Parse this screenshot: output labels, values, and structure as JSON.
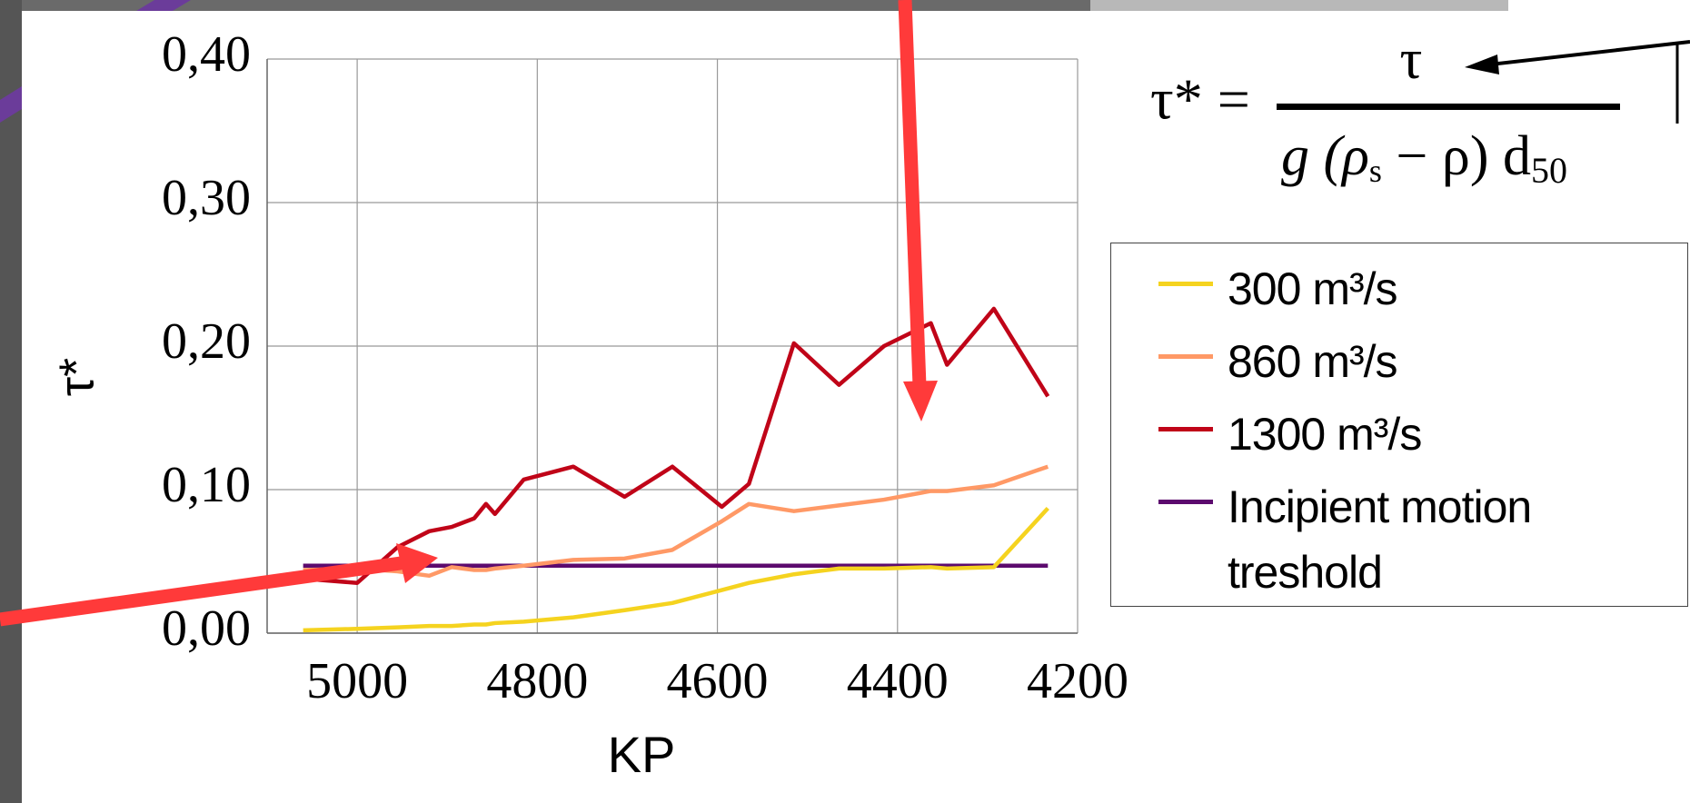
{
  "chart_data": {
    "type": "line",
    "x_label": "KP",
    "y_label": "τ*",
    "x": [
      5060,
      5000,
      4955,
      4920,
      4895,
      4870,
      4857,
      4847,
      4815,
      4760,
      4703,
      4650,
      4595,
      4565,
      4515,
      4465,
      4415,
      4363,
      4345,
      4293,
      4233
    ],
    "series": [
      {
        "name": "300 m³/s",
        "color": "#f5d31f",
        "values": [
          0.002,
          0.003,
          0.004,
          0.005,
          0.005,
          0.006,
          0.006,
          0.007,
          0.008,
          0.011,
          0.016,
          0.021,
          0.03,
          0.035,
          0.041,
          0.045,
          0.045,
          0.046,
          0.045,
          0.046,
          0.087
        ]
      },
      {
        "name": "860 m³/s",
        "color": "#ff9966",
        "values": [
          0.044,
          0.045,
          0.043,
          0.04,
          0.046,
          0.044,
          0.044,
          0.045,
          0.047,
          0.051,
          0.052,
          0.058,
          0.078,
          0.09,
          0.085,
          0.089,
          0.093,
          0.099,
          0.099,
          0.103,
          0.116
        ]
      },
      {
        "name": "1300 m³/s",
        "color": "#c00418",
        "values": [
          0.038,
          0.035,
          0.06,
          0.071,
          0.074,
          0.08,
          0.09,
          0.083,
          0.107,
          0.116,
          0.095,
          0.116,
          0.088,
          0.104,
          0.202,
          0.173,
          0.2,
          0.216,
          0.187,
          0.226,
          0.165
        ]
      },
      {
        "name": "Incipient motion treshold",
        "color": "#5c0a6e",
        "values": [
          0.047,
          0.047,
          0.047,
          0.047,
          0.047,
          0.047,
          0.047,
          0.047,
          0.047,
          0.047,
          0.047,
          0.047,
          0.047,
          0.047,
          0.047,
          0.047,
          0.047,
          0.047,
          0.047,
          0.047,
          0.047
        ]
      }
    ],
    "xlim": [
      5100,
      4200
    ],
    "ylim": [
      0,
      0.4
    ],
    "xticks": [
      5000,
      4800,
      4600,
      4400,
      4200
    ],
    "yticks": [
      {
        "value": 0,
        "label": "0,00"
      },
      {
        "value": 0.1,
        "label": "0,10"
      },
      {
        "value": 0.2,
        "label": "0,20"
      },
      {
        "value": 0.3,
        "label": "0,30"
      },
      {
        "value": 0.4,
        "label": "0,40"
      }
    ],
    "grid": true,
    "formula": {
      "lhs": "τ* =",
      "numerator": "τ",
      "denominator": [
        "g (ρ",
        "s",
        " − ρ) d",
        "50"
      ]
    }
  }
}
